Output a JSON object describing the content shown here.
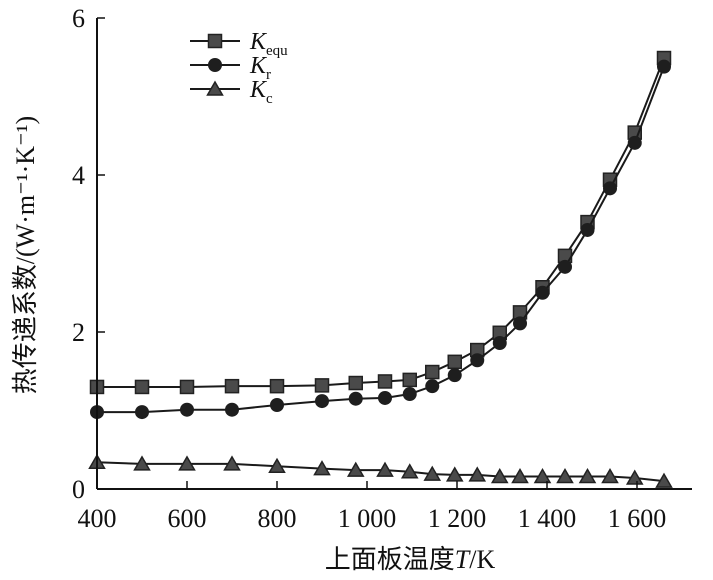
{
  "chart_data": {
    "type": "line",
    "title": "",
    "xlabel": "上面板温度T/K",
    "xlabel_parts": {
      "prefix": "上面板温度",
      "var": "T",
      "suffix": "/K"
    },
    "ylabel": "热传递系数/(W·m⁻¹·K⁻¹)",
    "xlim": [
      400,
      1720
    ],
    "ylim": [
      0,
      6
    ],
    "x_ticks": [
      400,
      600,
      800,
      1000,
      1200,
      1400,
      1600
    ],
    "x_tick_labels": [
      "400",
      "600",
      "800",
      "1 000",
      "1 200",
      "1 400",
      "1 600"
    ],
    "y_ticks": [
      0,
      2,
      4,
      6
    ],
    "y_tick_labels": [
      "0",
      "2",
      "4",
      "6"
    ],
    "grid": false,
    "legend_position": "top-left",
    "x": [
      400,
      500,
      600,
      700,
      800,
      900,
      975,
      1040,
      1095,
      1145,
      1195,
      1245,
      1295,
      1340,
      1390,
      1440,
      1490,
      1540,
      1595,
      1660
    ],
    "series": [
      {
        "name": "K_equ",
        "legend_main": "K",
        "legend_sub": "equ",
        "marker": "square",
        "values": [
          1.3,
          1.3,
          1.3,
          1.31,
          1.31,
          1.32,
          1.35,
          1.37,
          1.39,
          1.49,
          1.62,
          1.77,
          1.99,
          2.25,
          2.57,
          2.97,
          3.4,
          3.94,
          4.54,
          5.49
        ]
      },
      {
        "name": "K_r",
        "legend_main": "K",
        "legend_sub": "r",
        "marker": "circle",
        "values": [
          0.98,
          0.98,
          1.01,
          1.01,
          1.07,
          1.12,
          1.15,
          1.16,
          1.21,
          1.31,
          1.45,
          1.64,
          1.86,
          2.11,
          2.5,
          2.83,
          3.3,
          3.83,
          4.41,
          5.38
        ]
      },
      {
        "name": "K_c",
        "legend_main": "K",
        "legend_sub": "c",
        "marker": "triangle",
        "values": [
          0.34,
          0.32,
          0.32,
          0.32,
          0.29,
          0.26,
          0.24,
          0.24,
          0.22,
          0.19,
          0.18,
          0.18,
          0.16,
          0.16,
          0.16,
          0.16,
          0.16,
          0.16,
          0.14,
          0.1
        ]
      }
    ],
    "colors": {
      "line": "#1a1a1a",
      "marker_fill": "#4a4a4a",
      "circle_fill": "#1e1e1e"
    }
  }
}
